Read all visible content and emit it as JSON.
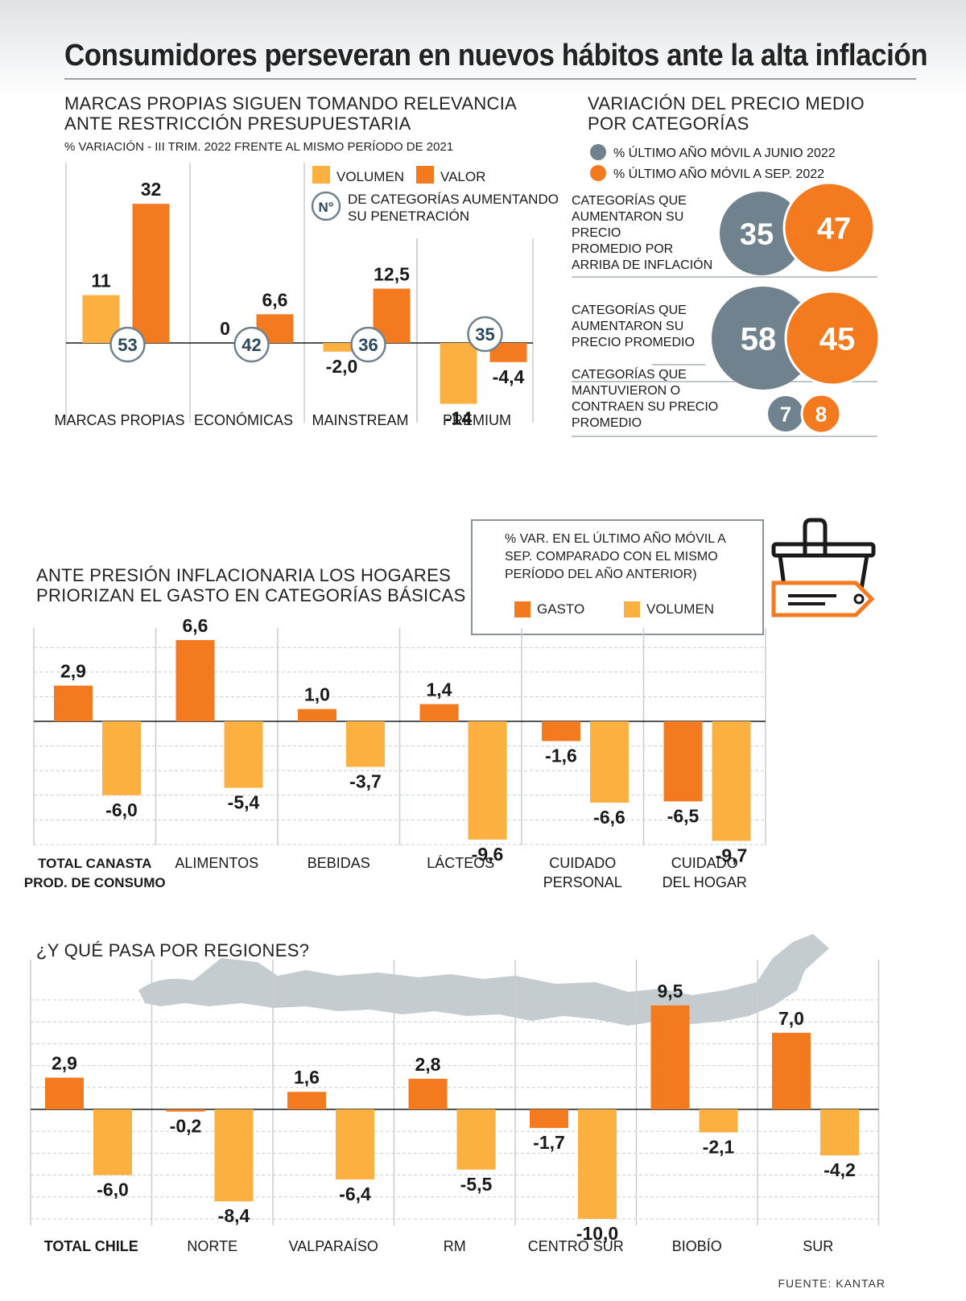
{
  "title": "Consumidores perseveran en nuevos hábitos ante la alta inflación",
  "colors": {
    "orange": "#f47a20",
    "light_orange": "#fbb040",
    "gray": "#6f828d",
    "navy": "#2b4a5c",
    "map": "#c5ccd0"
  },
  "section1": {
    "heading_line1": "MARCAS PROPIAS SIGUEN TOMANDO RELEVANCIA",
    "heading_line2": "ANTE RESTRICCIÓN PRESUPUESTARIA",
    "subtitle": "% VARIACIÓN - III TRIM.  2022 FRENTE AL MISMO PERÍODO DE 2021",
    "legend_volumen": "VOLUMEN",
    "legend_valor": "VALOR",
    "legend_badge": "N°",
    "legend_badge_line1": "DE CATEGORÍAS AUMENTANDO",
    "legend_badge_line2": "SU PENETRACIÓN"
  },
  "section2": {
    "heading_line1": "VARIACIÓN DEL PRECIO MEDIO",
    "heading_line2": "POR CATEGORÍAS",
    "legend_gray": "% ÚLTIMO AÑO MÓVIL A JUNIO 2022",
    "legend_orange": "% ÚLTIMO AÑO MÓVIL A SEP. 2022",
    "rows": [
      {
        "lines": [
          "CATEGORÍAS QUE",
          "AUMENTARON SU",
          "PRECIO",
          "PROMEDIO POR",
          "ARRIBA DE INFLACIÓN"
        ],
        "gray": "35",
        "orange": "47"
      },
      {
        "lines": [
          "CATEGORÍAS QUE",
          "AUMENTARON SU",
          "PRECIO PROMEDIO"
        ],
        "gray": "58",
        "orange": "45"
      },
      {
        "lines": [
          "CATEGORÍAS QUE",
          "MANTUVIERON O",
          "CONTRAEN SU PRECIO",
          "PROMEDIO"
        ],
        "gray": "7",
        "orange": "8"
      }
    ]
  },
  "section3": {
    "heading_line1": "ANTE PRESIÓN INFLACIONARIA LOS HOGARES",
    "heading_line2": "PRIORIZAN EL GASTO EN CATEGORÍAS BÁSICAS",
    "legend_line1": "% VAR. EN EL ÚLTIMO AÑO MÓVIL A",
    "legend_line2": "SEP.  COMPARADO CON EL MISMO",
    "legend_line3": "PERÍODO DEL AÑO ANTERIOR)",
    "legend_gasto": "GASTO",
    "legend_volumen": "VOLUMEN"
  },
  "section4": {
    "heading": "¿Y QUÉ PASA POR REGIONES?"
  },
  "source": "FUENTE: KANTAR",
  "chart_data": [
    {
      "type": "bar",
      "categories": [
        "MARCAS PROPIAS",
        "ECONÓMICAS",
        "MAINSTREAM",
        "PREMIUM"
      ],
      "series": [
        {
          "name": "VOLUMEN",
          "values": [
            11,
            0,
            -2.0,
            -14
          ],
          "labels": [
            "11",
            "0",
            "-2,0",
            "-14"
          ]
        },
        {
          "name": "VALOR",
          "values": [
            32,
            6.6,
            12.5,
            -4.4
          ],
          "labels": [
            "32",
            "6,6",
            "12,5",
            "-4,4"
          ]
        }
      ],
      "penetration_categories": [
        "53",
        "42",
        "36",
        "35"
      ]
    },
    {
      "type": "bar",
      "categories": [
        [
          "TOTAL CANASTA",
          "PROD. DE CONSUMO"
        ],
        [
          "ALIMENTOS"
        ],
        [
          "BEBIDAS"
        ],
        [
          "LÁCTEOS"
        ],
        [
          "CUIDADO",
          "PERSONAL"
        ],
        [
          "CUIDADO",
          "DEL HOGAR"
        ]
      ],
      "series": [
        {
          "name": "GASTO",
          "values": [
            2.9,
            6.6,
            1.0,
            1.4,
            -1.6,
            -6.5
          ],
          "labels": [
            "2,9",
            "6,6",
            "1,0",
            "1,4",
            "-1,6",
            "-6,5"
          ]
        },
        {
          "name": "VOLUMEN",
          "values": [
            -6.0,
            -5.4,
            -3.7,
            -9.6,
            -6.6,
            -9.7
          ],
          "labels": [
            "-6,0",
            "-5,4",
            "-3,7",
            "-9,6",
            "-6,6",
            "-9,7"
          ]
        }
      ]
    },
    {
      "type": "bar",
      "categories": [
        "TOTAL CHILE",
        "NORTE",
        "VALPARAÍSO",
        "RM",
        "CENTRO SUR",
        "BIOBÍO",
        "SUR"
      ],
      "series": [
        {
          "name": "GASTO",
          "values": [
            2.9,
            -0.2,
            1.6,
            2.8,
            -1.7,
            9.5,
            7.0
          ],
          "labels": [
            "2,9",
            "-0,2",
            "1,6",
            "2,8",
            "-1,7",
            "9,5",
            "7,0"
          ]
        },
        {
          "name": "VOLUMEN",
          "values": [
            -6.0,
            -8.4,
            -6.4,
            -5.5,
            -10.0,
            -2.1,
            -4.2
          ],
          "labels": [
            "-6,0",
            "-8,4",
            "-6,4",
            "-5,5",
            "-10,0",
            "-2,1",
            "-4,2"
          ]
        }
      ]
    }
  ]
}
